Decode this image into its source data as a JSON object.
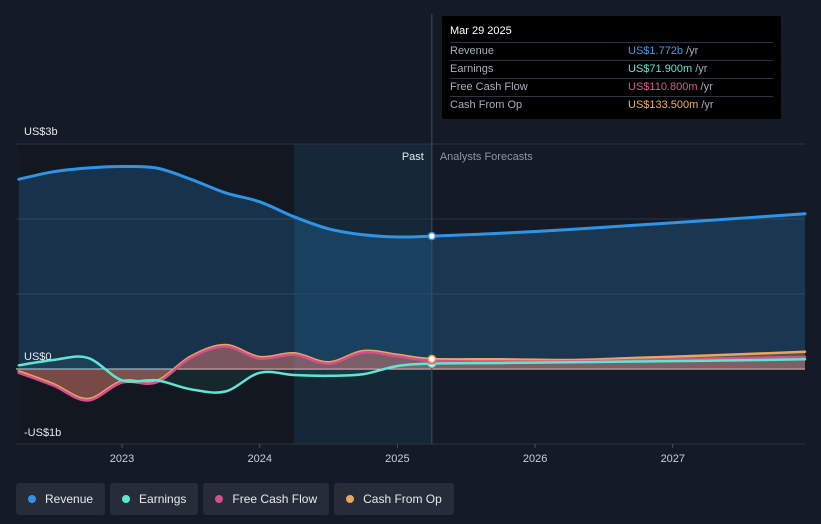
{
  "tooltip": {
    "date": "Mar 29 2025",
    "rows": [
      {
        "label": "Revenue",
        "value": "US$1.772b",
        "unit": "/yr",
        "color": "#3d9be9"
      },
      {
        "label": "Earnings",
        "value": "US$71.900m",
        "unit": "/yr",
        "color": "#5ee6d4"
      },
      {
        "label": "Free Cash Flow",
        "value": "US$110.800m",
        "unit": "/yr",
        "color": "#e0568b"
      },
      {
        "label": "Cash From Op",
        "value": "US$133.500m",
        "unit": "/yr",
        "color": "#f0b264"
      }
    ]
  },
  "legend": [
    {
      "label": "Revenue",
      "color": "#2f94e6"
    },
    {
      "label": "Earnings",
      "color": "#5ee6d4"
    },
    {
      "label": "Free Cash Flow",
      "color": "#d44f8d"
    },
    {
      "label": "Cash From Op",
      "color": "#e8a75c"
    }
  ],
  "chart_data": {
    "type": "line",
    "title": "",
    "xlabel": "",
    "ylabel": "",
    "x_ticks": [
      "2023",
      "2024",
      "2025",
      "2026",
      "2027"
    ],
    "y_tick_labels": [
      "US$3b",
      "US$0",
      "-US$1b"
    ],
    "ylim": [
      -1.0,
      3.0
    ],
    "xlim": [
      2022.23,
      2027.96
    ],
    "past_label": "Past",
    "forecast_label": "Analysts Forecasts",
    "divider_x": 2025.25,
    "highlight_range": [
      2024.25,
      2025.25
    ],
    "series": [
      {
        "name": "Revenue",
        "color": "#2f94e6",
        "x": [
          2022.25,
          2022.5,
          2022.75,
          2023.0,
          2023.25,
          2023.5,
          2023.75,
          2024.0,
          2024.25,
          2024.5,
          2024.75,
          2025.0,
          2025.25,
          2025.75,
          2026.25,
          2026.75,
          2027.25,
          2027.96
        ],
        "values": [
          2.53,
          2.63,
          2.68,
          2.7,
          2.68,
          2.53,
          2.35,
          2.23,
          2.03,
          1.87,
          1.79,
          1.76,
          1.772,
          1.81,
          1.86,
          1.92,
          1.98,
          2.07
        ]
      },
      {
        "name": "Earnings",
        "color": "#5ee6d4",
        "x": [
          2022.25,
          2022.5,
          2022.75,
          2023.0,
          2023.25,
          2023.5,
          2023.75,
          2024.0,
          2024.25,
          2024.5,
          2024.75,
          2025.0,
          2025.25,
          2025.75,
          2026.25,
          2026.75,
          2027.25,
          2027.96
        ],
        "values": [
          0.05,
          0.12,
          0.15,
          -0.15,
          -0.15,
          -0.27,
          -0.3,
          -0.05,
          -0.08,
          -0.09,
          -0.07,
          0.04,
          0.072,
          0.08,
          0.09,
          0.1,
          0.11,
          0.13
        ]
      },
      {
        "name": "Free Cash Flow",
        "color": "#d44f8d",
        "x": [
          2022.25,
          2022.5,
          2022.75,
          2023.0,
          2023.25,
          2023.5,
          2023.75,
          2024.0,
          2024.25,
          2024.5,
          2024.75,
          2025.0,
          2025.25,
          2025.75,
          2026.25,
          2026.75,
          2027.25,
          2027.96
        ],
        "values": [
          -0.05,
          -0.22,
          -0.42,
          -0.18,
          -0.18,
          0.15,
          0.3,
          0.14,
          0.19,
          0.07,
          0.22,
          0.17,
          0.111,
          0.1,
          0.1,
          0.12,
          0.14,
          0.16
        ]
      },
      {
        "name": "Cash From Op",
        "color": "#e8a75c",
        "x": [
          2022.25,
          2022.5,
          2022.75,
          2023.0,
          2023.25,
          2023.5,
          2023.75,
          2024.0,
          2024.25,
          2024.5,
          2024.75,
          2025.0,
          2025.25,
          2025.75,
          2026.25,
          2026.75,
          2027.25,
          2027.96
        ],
        "values": [
          -0.03,
          -0.2,
          -0.4,
          -0.16,
          -0.16,
          0.17,
          0.32,
          0.16,
          0.21,
          0.09,
          0.24,
          0.19,
          0.134,
          0.13,
          0.12,
          0.15,
          0.18,
          0.23
        ]
      }
    ]
  }
}
